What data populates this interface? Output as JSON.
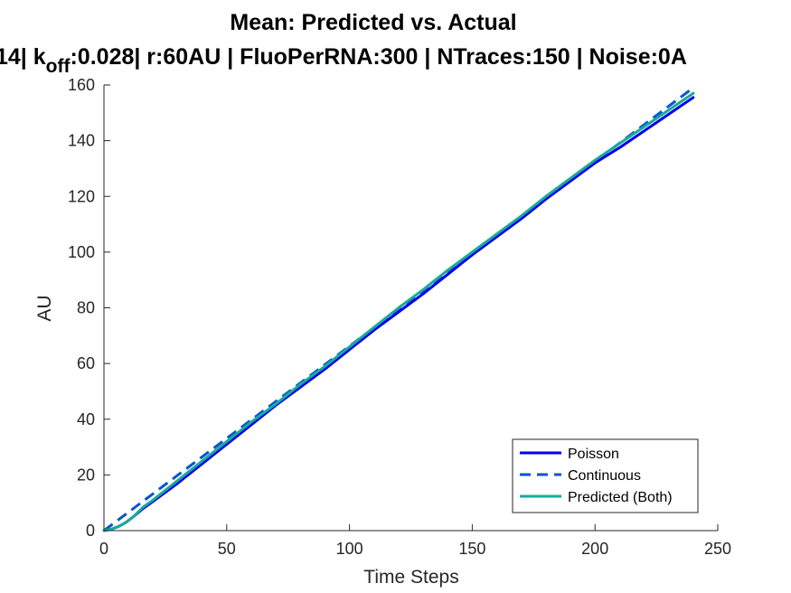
{
  "chart_data": {
    "type": "line",
    "title": "Mean: Predicted vs. Actual",
    "subtitle_parts": {
      "before": "14| k",
      "subscript": "off",
      "after": ":0.028| r:60AU | FluoPerRNA:300 | NTraces:150 | Noise:0A"
    },
    "xlabel": "Time Steps",
    "ylabel": "AU",
    "xlim": [
      0,
      250
    ],
    "ylim": [
      0,
      160
    ],
    "xticks": [
      0,
      50,
      100,
      150,
      200,
      250
    ],
    "yticks": [
      0,
      20,
      40,
      60,
      80,
      100,
      120,
      140,
      160
    ],
    "grid": false,
    "legend_position": "bottom-right",
    "series": [
      {
        "name": "Poisson",
        "color": "#0000ee",
        "style": "solid",
        "x": [
          0,
          3,
          6,
          9,
          12,
          16,
          20,
          30,
          40,
          50,
          60,
          70,
          80,
          90,
          100,
          110,
          120,
          130,
          140,
          150,
          160,
          170,
          180,
          190,
          200,
          210,
          220,
          230,
          240
        ],
        "y": [
          0,
          0.5,
          1.5,
          3,
          5,
          8,
          10.5,
          17,
          24,
          31,
          38,
          45,
          51.5,
          58,
          65,
          72,
          78.5,
          85,
          92,
          99,
          105.5,
          112,
          119,
          125.5,
          132,
          137.5,
          143.5,
          149.5,
          155.5
        ]
      },
      {
        "name": "Continuous",
        "color": "#0a55cc",
        "style": "dashed",
        "x": [
          0,
          240
        ],
        "y": [
          0,
          159
        ]
      },
      {
        "name": "Predicted (Both)",
        "color": "#1aaa9a",
        "style": "solid",
        "x": [
          0,
          3,
          6,
          9,
          12,
          16,
          20,
          30,
          40,
          50,
          60,
          70,
          80,
          90,
          100,
          110,
          120,
          130,
          140,
          150,
          160,
          170,
          180,
          190,
          200,
          210,
          220,
          230,
          240
        ],
        "y": [
          0,
          0.5,
          1.5,
          3,
          5,
          8.5,
          11,
          18,
          25,
          32,
          39,
          45.5,
          52.5,
          59,
          66,
          73,
          80,
          86.5,
          93.5,
          100,
          106.5,
          113,
          120,
          126.5,
          133,
          139,
          145,
          151,
          157
        ]
      }
    ]
  }
}
